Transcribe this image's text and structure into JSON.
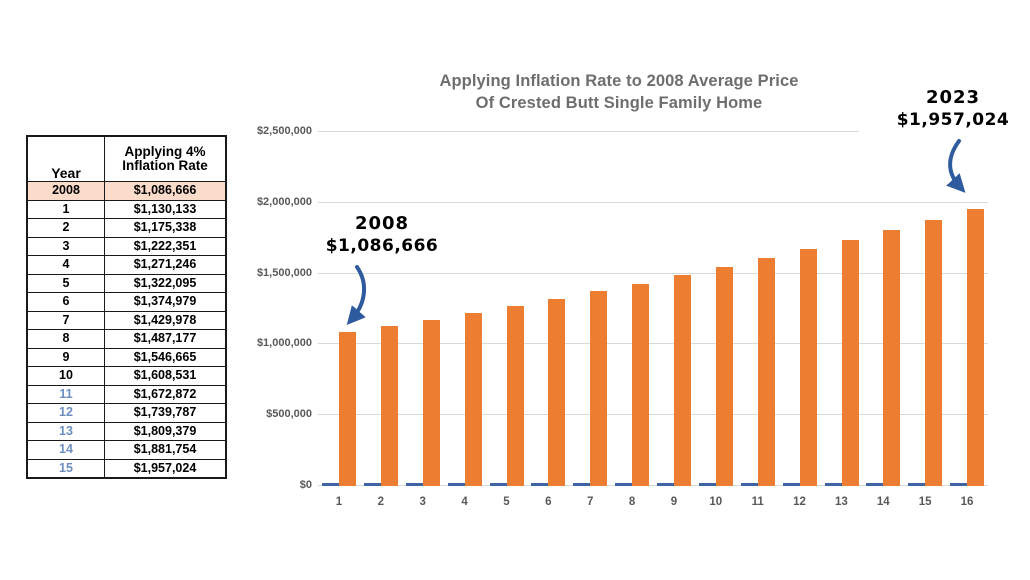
{
  "table": {
    "header": {
      "year": "Year",
      "rate_line1": "Applying 4%",
      "rate_line2": "Inflation Rate"
    },
    "rows": [
      {
        "year": "2008",
        "value": "$1,086,666",
        "highlight": true
      },
      {
        "year": "1",
        "value": "$1,130,133"
      },
      {
        "year": "2",
        "value": "$1,175,338"
      },
      {
        "year": "3",
        "value": "$1,222,351"
      },
      {
        "year": "4",
        "value": "$1,271,246"
      },
      {
        "year": "5",
        "value": "$1,322,095"
      },
      {
        "year": "6",
        "value": "$1,374,979"
      },
      {
        "year": "7",
        "value": "$1,429,978"
      },
      {
        "year": "8",
        "value": "$1,487,177"
      },
      {
        "year": "9",
        "value": "$1,546,665"
      },
      {
        "year": "10",
        "value": "$1,608,531"
      },
      {
        "year": "11",
        "value": "$1,672,872",
        "blue_year": true
      },
      {
        "year": "12",
        "value": "$1,739,787",
        "blue_year": true
      },
      {
        "year": "13",
        "value": "$1,809,379",
        "blue_year": true
      },
      {
        "year": "14",
        "value": "$1,881,754",
        "blue_year": true
      },
      {
        "year": "15",
        "value": "$1,957,024",
        "blue_year": true
      }
    ],
    "colors": {
      "highlight_bg": "#fbdcca",
      "blue_year_text": "#6d8ec1",
      "border": "#1a1a1a"
    }
  },
  "chart_data": {
    "type": "bar",
    "title_line1": "Applying Inflation Rate to 2008 Average Price",
    "title_line2": "Of Crested Butt Single Family Home",
    "categories": [
      "1",
      "2",
      "3",
      "4",
      "5",
      "6",
      "7",
      "8",
      "9",
      "10",
      "11",
      "12",
      "13",
      "14",
      "15",
      "16"
    ],
    "values": [
      1086666,
      1130133,
      1175338,
      1222351,
      1271246,
      1322095,
      1374979,
      1429978,
      1487177,
      1546665,
      1608531,
      1672872,
      1739787,
      1809379,
      1881754,
      1957024
    ],
    "series": [
      {
        "name": "price-with-4pct-inflation",
        "color": "#ED7D31"
      },
      {
        "name": "baseline-year-marker",
        "color": "#3f64a4",
        "note": "near-zero second series drawn as small dashes at baseline"
      }
    ],
    "ylim": [
      0,
      2500000
    ],
    "ytick_labels": [
      "$0",
      "$500,000",
      "$1,000,000",
      "$1,500,000",
      "$2,000,000",
      "$2,500,000"
    ],
    "grid": true,
    "legend": "none",
    "annotations": [
      {
        "line1": "2008",
        "line2": "$1,086,666",
        "target_category": "1"
      },
      {
        "line1": "2023",
        "line2": "$1,957,024",
        "target_category": "16"
      }
    ],
    "colors": {
      "grid": "#d9d9d9",
      "axis_text": "#595959",
      "title_text": "#6e6e6e",
      "arrow": "#2e5b9e"
    }
  }
}
